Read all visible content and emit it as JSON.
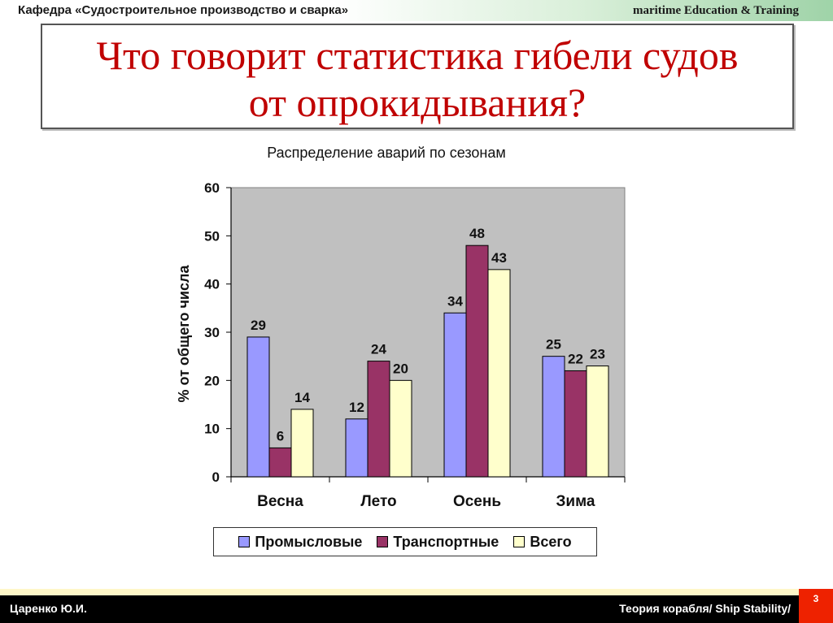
{
  "header": {
    "left": "Кафедра «Судостроительное производство и сварка»",
    "right": "maritime Education & Training"
  },
  "slide": {
    "title_line1": "Что говорит статистика гибели судов",
    "title_line2": "от опрокидывания?"
  },
  "chart_data": {
    "type": "bar",
    "title": "Распределение аварий по сезонам",
    "xlabel": "",
    "ylabel": "% от общего числа",
    "ylim": [
      0,
      60
    ],
    "yticks": [
      0,
      10,
      20,
      30,
      40,
      50,
      60
    ],
    "categories": [
      "Весна",
      "Лето",
      "Осень",
      "Зима"
    ],
    "series": [
      {
        "name": "Промысловые",
        "values": [
          29,
          12,
          34,
          25
        ],
        "color": "#9999ff"
      },
      {
        "name": "Транспортные",
        "values": [
          6,
          24,
          48,
          22
        ],
        "color": "#993366"
      },
      {
        "name": "Всего",
        "values": [
          14,
          20,
          43,
          23
        ],
        "color": "#ffffcc"
      }
    ],
    "legend": "bottom",
    "plot_background": "#c0c0c0",
    "grid": false
  },
  "footer": {
    "author": "Царенко Ю.И.",
    "course": "Теория корабля/ Ship Stability/",
    "page": "3"
  }
}
